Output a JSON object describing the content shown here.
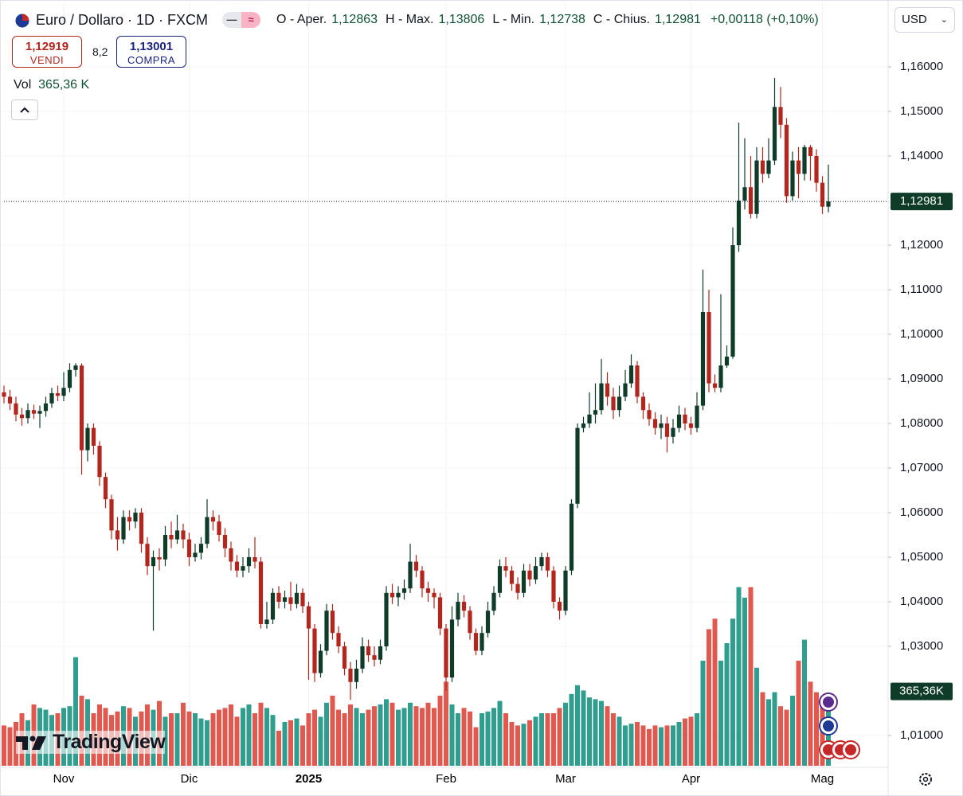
{
  "chart_data": {
    "type": "candlestick",
    "title": "Euro / Dollaro · 1D · FXCM",
    "categories": [
      null,
      null,
      null,
      null,
      null,
      null,
      null,
      null,
      null,
      null,
      "Nov",
      null,
      null,
      null,
      null,
      null,
      null,
      null,
      null,
      null,
      null,
      null,
      null,
      null,
      null,
      null,
      null,
      null,
      null,
      null,
      null,
      "Dic",
      null,
      null,
      null,
      null,
      null,
      null,
      null,
      null,
      null,
      null,
      null,
      null,
      null,
      null,
      null,
      null,
      null,
      null,
      null,
      "2025",
      null,
      null,
      null,
      null,
      null,
      null,
      null,
      null,
      null,
      null,
      null,
      null,
      null,
      null,
      null,
      null,
      null,
      null,
      null,
      null,
      null,
      null,
      "Feb",
      null,
      null,
      null,
      null,
      null,
      null,
      null,
      null,
      null,
      null,
      null,
      null,
      null,
      null,
      null,
      null,
      null,
      null,
      null,
      "Mar",
      null,
      null,
      null,
      null,
      null,
      null,
      null,
      null,
      null,
      null,
      null,
      null,
      null,
      null,
      null,
      null,
      null,
      null,
      null,
      null,
      "Apr",
      null,
      null,
      null,
      null,
      null,
      null,
      null,
      null,
      null,
      null,
      null,
      null,
      null,
      null,
      null,
      null,
      null,
      null,
      null,
      null,
      null,
      "Mag",
      null
    ],
    "open": [
      1.087,
      1.086,
      1.0845,
      1.082,
      1.0812,
      1.083,
      1.0822,
      1.0828,
      1.0845,
      1.0868,
      1.0862,
      1.088,
      1.092,
      1.093,
      1.074,
      1.079,
      1.075,
      1.068,
      1.063,
      1.056,
      1.054,
      1.059,
      1.058,
      1.06,
      1.053,
      1.048,
      1.05,
      1.0495,
      1.055,
      1.054,
      1.056,
      1.054,
      1.05,
      1.051,
      1.053,
      1.059,
      1.058,
      1.055,
      1.052,
      1.049,
      1.047,
      1.048,
      1.05,
      1.049,
      1.035,
      1.036,
      1.042,
      1.04,
      1.041,
      1.0395,
      1.042,
      1.039,
      1.034,
      1.024,
      1.029,
      1.038,
      1.033,
      1.03,
      1.025,
      1.022,
      1.025,
      1.03,
      1.028,
      1.027,
      1.03,
      1.042,
      1.041,
      1.042,
      1.043,
      1.049,
      1.047,
      1.043,
      1.042,
      1.041,
      1.034,
      1.023,
      1.036,
      1.04,
      1.038,
      1.033,
      1.029,
      1.033,
      1.038,
      1.042,
      1.048,
      1.047,
      1.044,
      1.042,
      1.047,
      1.045,
      1.048,
      1.05,
      1.047,
      1.04,
      1.038,
      1.047,
      1.062,
      1.079,
      1.08,
      1.082,
      1.083,
      1.089,
      1.086,
      1.083,
      1.086,
      1.089,
      1.093,
      1.086,
      1.083,
      1.081,
      1.079,
      1.08,
      1.077,
      1.079,
      1.082,
      1.08,
      1.079,
      1.084,
      1.105,
      1.089,
      1.088,
      1.093,
      1.095,
      1.12,
      1.13,
      1.133,
      1.127,
      1.139,
      1.136,
      1.139,
      1.151,
      1.147,
      1.131,
      1.139,
      1.136,
      1.142,
      1.14,
      1.134,
      1.12863
    ],
    "high": [
      1.0885,
      1.0875,
      1.086,
      1.0835,
      1.0845,
      1.0842,
      1.084,
      1.086,
      1.088,
      1.0885,
      1.0915,
      1.0935,
      1.0935,
      1.0935,
      1.08,
      1.08,
      1.076,
      1.069,
      1.064,
      1.059,
      1.0605,
      1.0605,
      1.061,
      1.061,
      1.0545,
      1.0515,
      1.052,
      1.057,
      1.058,
      1.0595,
      1.0575,
      1.0555,
      1.053,
      1.0545,
      1.063,
      1.0605,
      1.0595,
      1.0565,
      1.0535,
      1.0505,
      1.05,
      1.052,
      1.0545,
      1.05,
      1.04,
      1.043,
      1.0435,
      1.0425,
      1.0445,
      1.044,
      1.043,
      1.04,
      1.035,
      1.0305,
      1.0395,
      1.0395,
      1.0345,
      1.031,
      1.0265,
      1.027,
      1.032,
      1.0315,
      1.03,
      1.0315,
      1.0435,
      1.044,
      1.0435,
      1.045,
      1.053,
      1.0505,
      1.048,
      1.0445,
      1.043,
      1.042,
      1.035,
      1.039,
      1.042,
      1.0415,
      1.039,
      1.034,
      1.0345,
      1.04,
      1.0435,
      1.0495,
      1.05,
      1.048,
      1.0455,
      1.0485,
      1.0485,
      1.05,
      1.051,
      1.051,
      1.048,
      1.041,
      1.048,
      1.063,
      1.08,
      1.0815,
      1.087,
      1.089,
      1.0945,
      1.0915,
      1.088,
      1.0885,
      1.092,
      1.0955,
      1.094,
      1.087,
      1.0845,
      1.0825,
      1.082,
      1.0815,
      1.081,
      1.084,
      1.0835,
      1.0815,
      1.087,
      1.1145,
      1.11,
      1.091,
      1.109,
      1.0975,
      1.124,
      1.1475,
      1.144,
      1.14,
      1.142,
      1.142,
      1.144,
      1.1575,
      1.1555,
      1.1485,
      1.141,
      1.142,
      1.1425,
      1.1425,
      1.1415,
      1.1355,
      1.13806
    ],
    "low": [
      1.0845,
      1.083,
      1.0805,
      1.0795,
      1.08,
      1.081,
      1.079,
      1.0815,
      1.0835,
      1.085,
      1.085,
      1.087,
      1.0905,
      1.0685,
      1.0715,
      1.073,
      1.066,
      1.061,
      1.054,
      1.0515,
      1.053,
      1.056,
      1.0565,
      1.051,
      1.046,
      1.0335,
      1.047,
      1.048,
      1.052,
      1.053,
      1.052,
      1.048,
      1.049,
      1.0495,
      1.052,
      1.056,
      1.0535,
      1.05,
      1.047,
      1.0455,
      1.0455,
      1.0465,
      1.0475,
      1.034,
      1.034,
      1.035,
      1.0385,
      1.0385,
      1.038,
      1.0385,
      1.0375,
      1.0225,
      1.022,
      1.023,
      1.028,
      1.0315,
      1.0285,
      1.0235,
      1.018,
      1.0205,
      1.024,
      1.0265,
      1.0255,
      1.026,
      1.029,
      1.0395,
      1.039,
      1.0405,
      1.042,
      1.0455,
      1.041,
      1.04,
      1.0385,
      1.0325,
      1.02,
      1.022,
      1.0345,
      1.0365,
      1.0315,
      1.028,
      1.028,
      1.032,
      1.037,
      1.041,
      1.0455,
      1.0425,
      1.0405,
      1.041,
      1.0435,
      1.044,
      1.047,
      1.0455,
      1.0385,
      1.036,
      1.037,
      1.046,
      1.061,
      1.078,
      1.079,
      1.08,
      1.082,
      1.084,
      1.081,
      1.0815,
      1.085,
      1.088,
      1.0845,
      1.081,
      1.0795,
      1.0775,
      1.0765,
      1.0735,
      1.0755,
      1.078,
      1.0785,
      1.0775,
      1.078,
      1.083,
      1.087,
      1.087,
      1.087,
      1.0925,
      1.0945,
      1.1185,
      1.128,
      1.126,
      1.126,
      1.134,
      1.135,
      1.138,
      1.144,
      1.1295,
      1.13,
      1.1305,
      1.1345,
      1.1345,
      1.132,
      1.127,
      1.12738
    ],
    "close": [
      1.086,
      1.0845,
      1.082,
      1.0812,
      1.083,
      1.0822,
      1.0828,
      1.0845,
      1.0868,
      1.0862,
      1.088,
      1.092,
      1.093,
      1.074,
      1.079,
      1.075,
      1.068,
      1.063,
      1.056,
      1.054,
      1.059,
      1.058,
      1.06,
      1.053,
      1.048,
      1.05,
      1.0495,
      1.055,
      1.054,
      1.056,
      1.054,
      1.05,
      1.051,
      1.053,
      1.059,
      1.058,
      1.055,
      1.052,
      1.049,
      1.047,
      1.048,
      1.05,
      1.049,
      1.035,
      1.036,
      1.042,
      1.04,
      1.041,
      1.0395,
      1.042,
      1.039,
      1.034,
      1.024,
      1.029,
      1.038,
      1.033,
      1.03,
      1.025,
      1.022,
      1.025,
      1.03,
      1.028,
      1.027,
      1.03,
      1.042,
      1.041,
      1.042,
      1.043,
      1.049,
      1.047,
      1.043,
      1.042,
      1.041,
      1.034,
      1.023,
      1.036,
      1.04,
      1.038,
      1.033,
      1.029,
      1.033,
      1.038,
      1.042,
      1.048,
      1.047,
      1.044,
      1.042,
      1.047,
      1.045,
      1.048,
      1.05,
      1.047,
      1.04,
      1.038,
      1.047,
      1.062,
      1.079,
      1.08,
      1.082,
      1.083,
      1.089,
      1.086,
      1.083,
      1.086,
      1.089,
      1.093,
      1.086,
      1.083,
      1.081,
      1.079,
      1.08,
      1.077,
      1.079,
      1.082,
      1.08,
      1.079,
      1.084,
      1.105,
      1.089,
      1.088,
      1.093,
      1.095,
      1.12,
      1.13,
      1.133,
      1.127,
      1.139,
      1.136,
      1.139,
      1.151,
      1.147,
      1.131,
      1.139,
      1.136,
      1.142,
      1.14,
      1.134,
      1.12863,
      1.12981
    ],
    "volume": [
      230,
      220,
      250,
      300,
      260,
      350,
      330,
      320,
      290,
      300,
      330,
      340,
      620,
      400,
      380,
      300,
      350,
      330,
      290,
      310,
      340,
      330,
      280,
      310,
      350,
      320,
      370,
      280,
      300,
      300,
      360,
      310,
      300,
      270,
      260,
      300,
      320,
      330,
      350,
      280,
      330,
      350,
      300,
      360,
      330,
      290,
      200,
      250,
      260,
      270,
      230,
      300,
      320,
      280,
      360,
      400,
      320,
      300,
      350,
      330,
      300,
      320,
      340,
      350,
      380,
      360,
      320,
      330,
      360,
      340,
      330,
      360,
      330,
      400,
      480,
      350,
      300,
      330,
      310,
      220,
      300,
      310,
      330,
      370,
      300,
      250,
      230,
      240,
      260,
      280,
      300,
      300,
      300,
      330,
      360,
      410,
      460,
      430,
      390,
      380,
      370,
      340,
      300,
      280,
      230,
      240,
      250,
      230,
      210,
      230,
      220,
      230,
      230,
      250,
      270,
      280,
      300,
      600,
      780,
      840,
      600,
      700,
      840,
      1020,
      960,
      1020,
      560,
      420,
      380,
      420,
      340,
      320,
      400,
      600,
      720,
      480,
      420,
      380,
      365.36
    ],
    "up_color": "#0f3b29",
    "down_color": "#b3261e",
    "volume_up_color": "#2f9e8f",
    "volume_down_color": "#e0584e",
    "ylim": [
      1.00321,
      1.17429
    ],
    "yticks": [
      {
        "value": 1.16,
        "label": "1,16000"
      },
      {
        "value": 1.15,
        "label": "1,15000"
      },
      {
        "value": 1.14,
        "label": "1,14000"
      },
      {
        "value": 1.12,
        "label": "1,12000"
      },
      {
        "value": 1.11,
        "label": "1,11000"
      },
      {
        "value": 1.1,
        "label": "1,10000"
      },
      {
        "value": 1.09,
        "label": "1,09000"
      },
      {
        "value": 1.08,
        "label": "1,08000"
      },
      {
        "value": 1.07,
        "label": "1,07000"
      },
      {
        "value": 1.06,
        "label": "1,06000"
      },
      {
        "value": 1.05,
        "label": "1,05000"
      },
      {
        "value": 1.04,
        "label": "1,04000"
      },
      {
        "value": 1.03,
        "label": "1,03000"
      },
      {
        "value": 1.01,
        "label": "1,01000"
      }
    ],
    "grid": true,
    "volume_badge": "365,36K"
  },
  "ui": {
    "ohlc": [
      {
        "label": "O - Aper.",
        "value": "1,12863"
      },
      {
        "label": "H - Max.",
        "value": "1,13806"
      },
      {
        "label": "L - Min.",
        "value": "1,12738"
      },
      {
        "label": "C - Chius.",
        "value": "1,12981"
      }
    ],
    "change": "+0,00118 (+0,10%)",
    "currency": "USD",
    "sell": {
      "price": "1,12919",
      "label": "VENDI"
    },
    "spread": "8,2",
    "buy": {
      "price": "1,13001",
      "label": "COMPRA"
    },
    "volume_label": "Vol",
    "volume_value": "365,36 K",
    "logo": "TradingView"
  }
}
